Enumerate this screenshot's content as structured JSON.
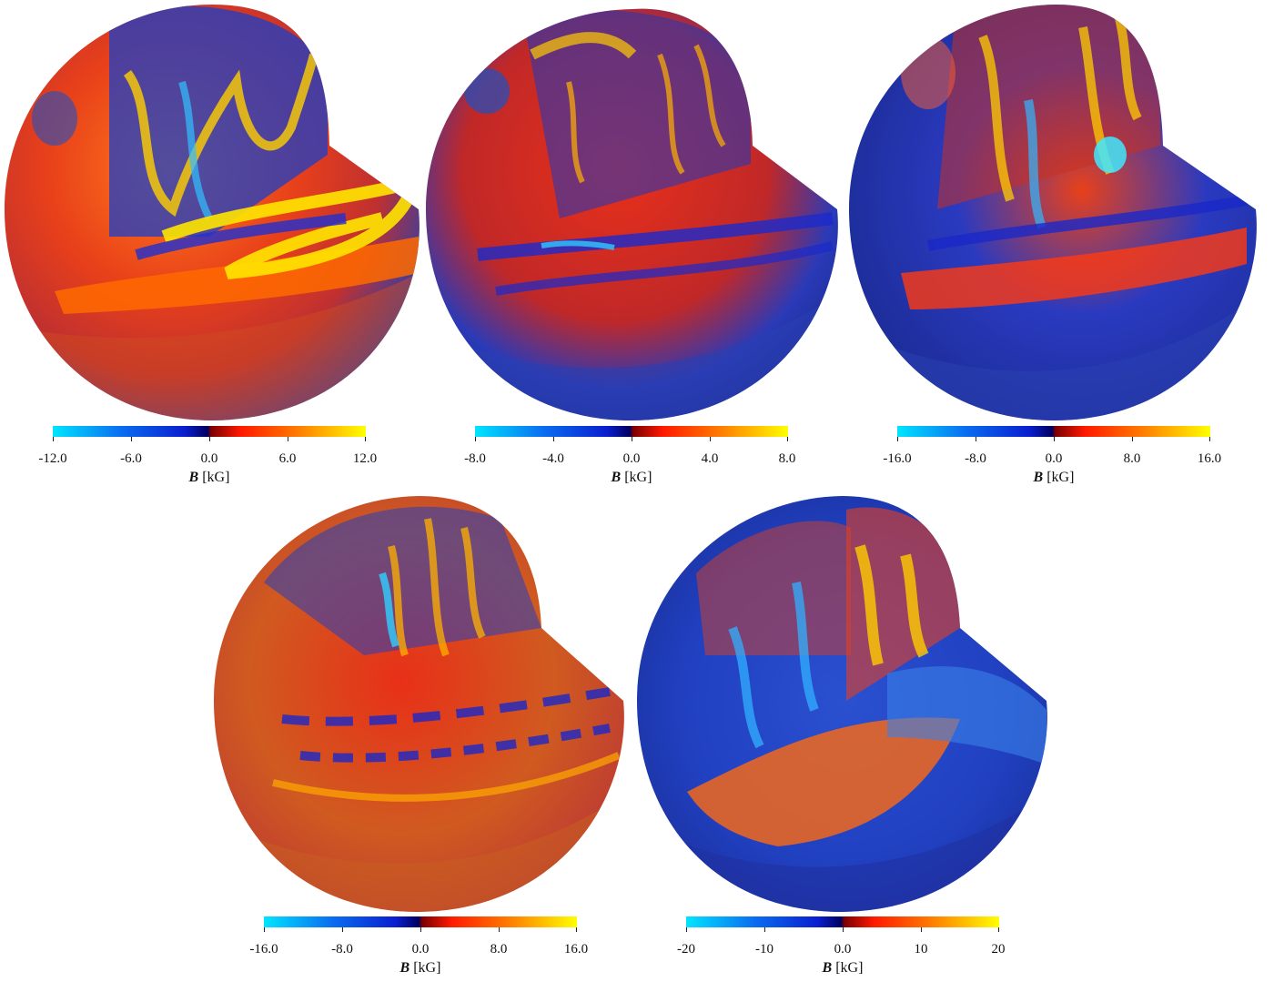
{
  "colormap": {
    "stops": [
      "#00e5ff",
      "#0a6cf0",
      "#0a1fd0",
      "#000060",
      "#7a0000",
      "#ff1a00",
      "#ff7a00",
      "#ffff00"
    ]
  },
  "panels": [
    {
      "id": "panel-1",
      "colorbar": {
        "ticks": [
          "-12.0",
          "-6.0",
          "0.0",
          "6.0",
          "12.0"
        ],
        "symbol": "B",
        "unit": "[kG]"
      }
    },
    {
      "id": "panel-2",
      "colorbar": {
        "ticks": [
          "-8.0",
          "-4.0",
          "0.0",
          "4.0",
          "8.0"
        ],
        "symbol": "B",
        "unit": "[kG]"
      }
    },
    {
      "id": "panel-3",
      "colorbar": {
        "ticks": [
          "-16.0",
          "-8.0",
          "0.0",
          "8.0",
          "16.0"
        ],
        "symbol": "B",
        "unit": "[kG]"
      }
    },
    {
      "id": "panel-4",
      "colorbar": {
        "ticks": [
          "-16.0",
          "-8.0",
          "0.0",
          "8.0",
          "16.0"
        ],
        "symbol": "B",
        "unit": "[kG]"
      }
    },
    {
      "id": "panel-5",
      "colorbar": {
        "ticks": [
          "-20",
          "-10",
          "0.0",
          "10",
          "20"
        ],
        "symbol": "B",
        "unit": "[kG]"
      }
    }
  ]
}
